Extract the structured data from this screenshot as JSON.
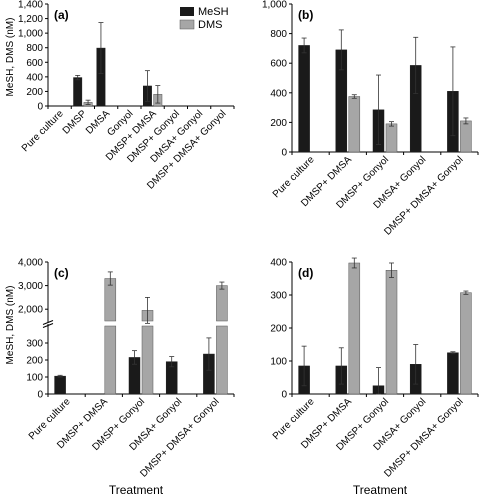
{
  "figure": {
    "ylabel": "MeSH, DMS (nM)",
    "xlabel": "Treatment",
    "legend": {
      "entries": [
        {
          "name": "MeSH",
          "color": "#1a1a1a"
        },
        {
          "name": "DMS",
          "color": "#a6a6a6"
        }
      ],
      "placement": "top-right of panel (a)"
    }
  },
  "colors": {
    "MeSH": "#1a1a1a",
    "DMS": "#a6a6a6"
  },
  "chart_data": [
    {
      "panel": "(a)",
      "type": "bar",
      "categories": [
        "Pure culture",
        "DMSP",
        "DMSA",
        "Gonyol",
        "DMSP+ DMSA",
        "DMSP+ Gonyol",
        "DMSA+ Gonyol",
        "DMSP+ DMSA+ Gonyol"
      ],
      "series": [
        {
          "name": "MeSH",
          "values": [
            null,
            390,
            795,
            null,
            275,
            null,
            null,
            null
          ],
          "errors": [
            null,
            30,
            350,
            null,
            210,
            null,
            null,
            null
          ]
        },
        {
          "name": "DMS",
          "values": [
            null,
            50,
            null,
            null,
            160,
            null,
            null,
            null
          ],
          "errors": [
            null,
            30,
            null,
            null,
            120,
            null,
            null,
            null
          ]
        }
      ],
      "ylim": [
        0,
        1400
      ],
      "yticks": [
        "0",
        "200",
        "400",
        "600",
        "800",
        "1,000",
        "1,200",
        "1,400"
      ],
      "ytick_values": [
        0,
        200,
        400,
        600,
        800,
        1000,
        1200,
        1400
      ]
    },
    {
      "panel": "(b)",
      "type": "bar",
      "categories": [
        "Pure culture",
        "DMSP+ DMSA",
        "DMSP+ Gonyol",
        "DMSA+ Gonyol",
        "DMSP+ DMSA+ Gonyol"
      ],
      "series": [
        {
          "name": "MeSH",
          "values": [
            720,
            690,
            285,
            585,
            410
          ],
          "errors": [
            50,
            135,
            235,
            190,
            300
          ]
        },
        {
          "name": "DMS",
          "values": [
            null,
            375,
            190,
            null,
            210
          ],
          "errors": [
            null,
            12,
            15,
            null,
            20
          ]
        }
      ],
      "ylim": [
        0,
        1000
      ],
      "yticks": [
        "0",
        "200",
        "400",
        "600",
        "800",
        "1,000"
      ],
      "ytick_values": [
        0,
        200,
        400,
        600,
        800,
        1000
      ]
    },
    {
      "panel": "(c)",
      "type": "bar",
      "broken_axis": true,
      "categories": [
        "Pure culture",
        "DMSP+ DMSA",
        "DMSP+ Gonyol",
        "DMSA+ Gonyol",
        "DMSP+ DMSA+ Gonyol"
      ],
      "series": [
        {
          "name": "MeSH",
          "values": [
            105,
            null,
            215,
            190,
            235
          ],
          "errors": [
            5,
            null,
            40,
            30,
            95
          ]
        },
        {
          "name": "DMS",
          "values": [
            null,
            3300,
            1950,
            null,
            3000
          ],
          "errors": [
            null,
            280,
            550,
            null,
            150
          ]
        }
      ],
      "ylim_lower": [
        0,
        400
      ],
      "ylim_upper": [
        1500,
        4000
      ],
      "yticks": [
        "0",
        "100",
        "200",
        "300",
        "2,000",
        "3,000",
        "4,000"
      ],
      "ytick_values": [
        0,
        100,
        200,
        300,
        2000,
        3000,
        4000
      ]
    },
    {
      "panel": "(d)",
      "type": "bar",
      "categories": [
        "Pure culture",
        "DMSP+ DMSA",
        "DMSP+ Gonyol",
        "DMSA+ Gonyol",
        "DMSP+ DMSA+ Gonyol"
      ],
      "series": [
        {
          "name": "MeSH",
          "values": [
            85,
            85,
            25,
            90,
            125
          ],
          "errors": [
            60,
            55,
            55,
            60,
            3
          ]
        },
        {
          "name": "DMS",
          "values": [
            null,
            397,
            375,
            null,
            307
          ],
          "errors": [
            null,
            15,
            22,
            null,
            5
          ]
        }
      ],
      "ylim": [
        0,
        400
      ],
      "yticks": [
        "0",
        "100",
        "200",
        "300",
        "400"
      ],
      "ytick_values": [
        0,
        100,
        200,
        300,
        400
      ]
    }
  ]
}
